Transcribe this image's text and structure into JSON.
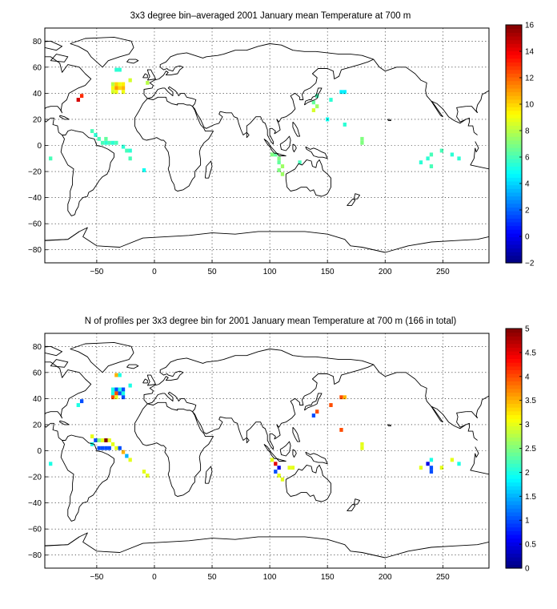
{
  "chart_data": [
    {
      "type": "heatmap",
      "title": "3x3 degree bin–averaged 2001 January mean Temperature at 700 m",
      "xlim": [
        -95,
        290
      ],
      "ylim": [
        -90,
        90
      ],
      "xticks": [
        -50,
        0,
        50,
        100,
        150,
        200,
        250
      ],
      "yticks": [
        -80,
        -60,
        -40,
        -20,
        0,
        20,
        40,
        60,
        80
      ],
      "grid": true,
      "colorbar": {
        "min": -2,
        "max": 16,
        "ticks": [
          -2,
          0,
          2,
          4,
          6,
          8,
          10,
          12,
          14,
          16
        ],
        "colormap": "jet"
      },
      "cell_size_deg": 3,
      "cells": [
        {
          "lon": -33,
          "lat": 58,
          "value": 5.5
        },
        {
          "lon": -30,
          "lat": 58,
          "value": 5.5
        },
        {
          "lon": -36,
          "lat": 47,
          "value": 8.0
        },
        {
          "lon": -33,
          "lat": 47,
          "value": 10.0
        },
        {
          "lon": -30,
          "lat": 47,
          "value": 9.0
        },
        {
          "lon": -27,
          "lat": 47,
          "value": 9.5
        },
        {
          "lon": -36,
          "lat": 44,
          "value": 9.0
        },
        {
          "lon": -33,
          "lat": 44,
          "value": 11.0
        },
        {
          "lon": -30,
          "lat": 44,
          "value": 10.0
        },
        {
          "lon": -27,
          "lat": 44,
          "value": 10.5
        },
        {
          "lon": -36,
          "lat": 41,
          "value": 8.5
        },
        {
          "lon": -33,
          "lat": 41,
          "value": 9.0
        },
        {
          "lon": -27,
          "lat": 41,
          "value": 9.0
        },
        {
          "lon": -21,
          "lat": 50,
          "value": 8.5
        },
        {
          "lon": -6,
          "lat": 48,
          "value": 8.0
        },
        {
          "lon": -63,
          "lat": 38,
          "value": 13.0
        },
        {
          "lon": -66,
          "lat": 35,
          "value": 14.5
        },
        {
          "lon": -54,
          "lat": 11,
          "value": 6.0
        },
        {
          "lon": -51,
          "lat": 8,
          "value": 5.5
        },
        {
          "lon": -48,
          "lat": 5,
          "value": 6.0
        },
        {
          "lon": -42,
          "lat": 2,
          "value": 5.5
        },
        {
          "lon": -39,
          "lat": 2,
          "value": 6.0
        },
        {
          "lon": -36,
          "lat": 2,
          "value": 5.5
        },
        {
          "lon": -33,
          "lat": 2,
          "value": 6.0
        },
        {
          "lon": -42,
          "lat": 5,
          "value": 6.5
        },
        {
          "lon": -45,
          "lat": 2,
          "value": 6.0
        },
        {
          "lon": -27,
          "lat": -1,
          "value": 5.5
        },
        {
          "lon": -24,
          "lat": -4,
          "value": 6.0
        },
        {
          "lon": -21,
          "lat": -4,
          "value": 5.5
        },
        {
          "lon": -21,
          "lat": -10,
          "value": 6.0
        },
        {
          "lon": -9,
          "lat": -19,
          "value": 5.0
        },
        {
          "lon": -90,
          "lat": -10,
          "value": 6.0
        },
        {
          "lon": 102,
          "lat": -7,
          "value": 7.0
        },
        {
          "lon": 105,
          "lat": -7,
          "value": 6.5
        },
        {
          "lon": 108,
          "lat": -10,
          "value": 7.0
        },
        {
          "lon": 108,
          "lat": -13,
          "value": 6.5
        },
        {
          "lon": 111,
          "lat": -16,
          "value": 7.5
        },
        {
          "lon": 108,
          "lat": -19,
          "value": 7.0
        },
        {
          "lon": 111,
          "lat": -22,
          "value": 7.5
        },
        {
          "lon": 126,
          "lat": -13,
          "value": 6.0
        },
        {
          "lon": 138,
          "lat": 33,
          "value": 6.5
        },
        {
          "lon": 141,
          "lat": 30,
          "value": 7.5
        },
        {
          "lon": 138,
          "lat": 27,
          "value": 8.5
        },
        {
          "lon": 150,
          "lat": 20,
          "value": 5.0
        },
        {
          "lon": 165,
          "lat": 41,
          "value": 4.5
        },
        {
          "lon": 162,
          "lat": 41,
          "value": 4.5
        },
        {
          "lon": 141,
          "lat": 38,
          "value": 6.0
        },
        {
          "lon": 153,
          "lat": 35,
          "value": 5.5
        },
        {
          "lon": 165,
          "lat": 16,
          "value": 5.5
        },
        {
          "lon": 180,
          "lat": 5,
          "value": 7.0
        },
        {
          "lon": 180,
          "lat": 2,
          "value": 7.0
        },
        {
          "lon": 240,
          "lat": -7,
          "value": 6.0
        },
        {
          "lon": 237,
          "lat": -10,
          "value": 5.5
        },
        {
          "lon": 231,
          "lat": -13,
          "value": 5.5
        },
        {
          "lon": 240,
          "lat": -16,
          "value": 6.0
        },
        {
          "lon": 258,
          "lat": -7,
          "value": 5.5
        },
        {
          "lon": 264,
          "lat": -10,
          "value": 5.5
        },
        {
          "lon": 249,
          "lat": -4,
          "value": 6.0
        }
      ]
    },
    {
      "type": "heatmap",
      "title": "N of profiles per 3x3 degree bin for 2001 January mean Temperature at 700 m (166 in total)",
      "xlim": [
        -95,
        290
      ],
      "ylim": [
        -90,
        90
      ],
      "xticks": [
        -50,
        0,
        50,
        100,
        150,
        200,
        250
      ],
      "yticks": [
        -80,
        -60,
        -40,
        -20,
        0,
        20,
        40,
        60,
        80
      ],
      "grid": true,
      "colorbar": {
        "min": 0,
        "max": 5,
        "ticks": [
          0,
          0.5,
          1,
          1.5,
          2,
          2.5,
          3,
          3.5,
          4,
          4.5,
          5
        ],
        "colormap": "jet"
      },
      "cell_size_deg": 3,
      "cells": [
        {
          "lon": -33,
          "lat": 58,
          "value": 3.5
        },
        {
          "lon": -30,
          "lat": 58,
          "value": 2.0
        },
        {
          "lon": -36,
          "lat": 47,
          "value": 2.0
        },
        {
          "lon": -33,
          "lat": 47,
          "value": 1.0
        },
        {
          "lon": -30,
          "lat": 47,
          "value": 2.0
        },
        {
          "lon": -27,
          "lat": 47,
          "value": 1.0
        },
        {
          "lon": -36,
          "lat": 44,
          "value": 2.0
        },
        {
          "lon": -33,
          "lat": 44,
          "value": 4.0
        },
        {
          "lon": -30,
          "lat": 44,
          "value": 1.0
        },
        {
          "lon": -27,
          "lat": 44,
          "value": 2.0
        },
        {
          "lon": -36,
          "lat": 41,
          "value": 4.0
        },
        {
          "lon": -33,
          "lat": 41,
          "value": 3.0
        },
        {
          "lon": -27,
          "lat": 41,
          "value": 1.0
        },
        {
          "lon": -21,
          "lat": 50,
          "value": 2.0
        },
        {
          "lon": -63,
          "lat": 38,
          "value": 1.0
        },
        {
          "lon": -66,
          "lat": 35,
          "value": 2.0
        },
        {
          "lon": -54,
          "lat": 11,
          "value": 3.0
        },
        {
          "lon": -51,
          "lat": 8,
          "value": 1.0
        },
        {
          "lon": -54,
          "lat": 5,
          "value": 2.0
        },
        {
          "lon": -48,
          "lat": 8,
          "value": 2.5
        },
        {
          "lon": -45,
          "lat": 8,
          "value": 3.0
        },
        {
          "lon": -39,
          "lat": 8,
          "value": 3.0
        },
        {
          "lon": -42,
          "lat": 8,
          "value": 5.0
        },
        {
          "lon": -36,
          "lat": 5,
          "value": 3.0
        },
        {
          "lon": -48,
          "lat": 2,
          "value": 1.0
        },
        {
          "lon": -45,
          "lat": 2,
          "value": 1.0
        },
        {
          "lon": -42,
          "lat": 2,
          "value": 1.0
        },
        {
          "lon": -39,
          "lat": 2,
          "value": 1.0
        },
        {
          "lon": -33,
          "lat": 2,
          "value": 3.0
        },
        {
          "lon": -30,
          "lat": 2,
          "value": 1.0
        },
        {
          "lon": -27,
          "lat": -1,
          "value": 3.5
        },
        {
          "lon": -24,
          "lat": -4,
          "value": 1.5
        },
        {
          "lon": -21,
          "lat": -7,
          "value": 3.0
        },
        {
          "lon": -9,
          "lat": -16,
          "value": 3.0
        },
        {
          "lon": -6,
          "lat": -19,
          "value": 3.0
        },
        {
          "lon": -90,
          "lat": -10,
          "value": 2.0
        },
        {
          "lon": 102,
          "lat": -7,
          "value": 3.0
        },
        {
          "lon": 105,
          "lat": -10,
          "value": 4.5
        },
        {
          "lon": 108,
          "lat": -13,
          "value": 0.5
        },
        {
          "lon": 105,
          "lat": -16,
          "value": 1.0
        },
        {
          "lon": 108,
          "lat": -19,
          "value": 3.0
        },
        {
          "lon": 111,
          "lat": -22,
          "value": 3.0
        },
        {
          "lon": 117,
          "lat": -13,
          "value": 3.0
        },
        {
          "lon": 120,
          "lat": -13,
          "value": 3.0
        },
        {
          "lon": 138,
          "lat": 27,
          "value": 1.0
        },
        {
          "lon": 141,
          "lat": 30,
          "value": 4.0
        },
        {
          "lon": 153,
          "lat": 35,
          "value": 4.0
        },
        {
          "lon": 162,
          "lat": 41,
          "value": 4.0
        },
        {
          "lon": 165,
          "lat": 41,
          "value": 3.5
        },
        {
          "lon": 162,
          "lat": 16,
          "value": 4.0
        },
        {
          "lon": 180,
          "lat": 5,
          "value": 3.0
        },
        {
          "lon": 180,
          "lat": 2,
          "value": 3.0
        },
        {
          "lon": 240,
          "lat": -7,
          "value": 2.0
        },
        {
          "lon": 237,
          "lat": -10,
          "value": 0.5
        },
        {
          "lon": 240,
          "lat": -13,
          "value": 1.0
        },
        {
          "lon": 240,
          "lat": -16,
          "value": 1.0
        },
        {
          "lon": 231,
          "lat": -13,
          "value": 3.0
        },
        {
          "lon": 249,
          "lat": -13,
          "value": 3.0
        },
        {
          "lon": 258,
          "lat": -7,
          "value": 3.0
        },
        {
          "lon": 264,
          "lat": -10,
          "value": 2.0
        }
      ]
    }
  ]
}
